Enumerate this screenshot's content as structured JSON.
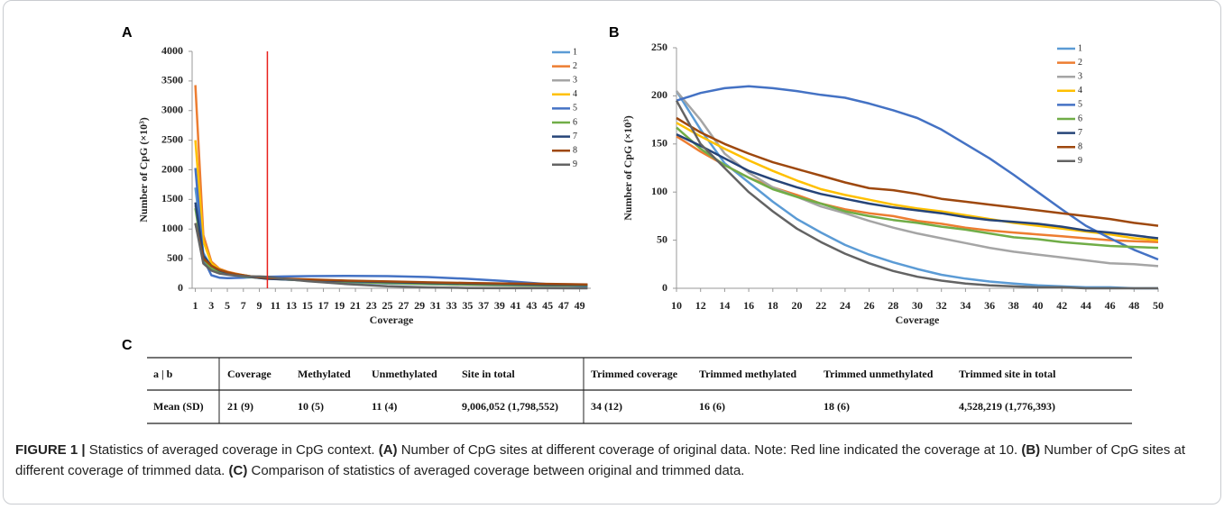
{
  "chart_data": [
    {
      "type": "line",
      "panel_label": "A",
      "x_label": "Coverage",
      "y_label": "Number of CpG (×10³)",
      "x": [
        1,
        2,
        3,
        4,
        5,
        6,
        7,
        8,
        9,
        10,
        12,
        15,
        20,
        25,
        30,
        35,
        40,
        45,
        50
      ],
      "xlim": [
        0.6,
        50.4
      ],
      "xticks": [
        1,
        3,
        5,
        7,
        9,
        11,
        13,
        15,
        17,
        19,
        21,
        23,
        25,
        27,
        29,
        31,
        33,
        35,
        37,
        39,
        41,
        43,
        45,
        47,
        49
      ],
      "ylim": [
        0,
        4000
      ],
      "yticks": [
        0,
        500,
        1000,
        1500,
        2000,
        2500,
        3000,
        3500,
        4000
      ],
      "vline": {
        "x": 10,
        "color": "#e8201c"
      },
      "series": [
        {
          "name": "1",
          "color": "#5b9bd5",
          "values": [
            1700,
            600,
            350,
            280,
            240,
            220,
            200,
            190,
            180,
            170,
            150,
            130,
            100,
            80,
            70,
            60,
            55,
            50,
            45
          ]
        },
        {
          "name": "2",
          "color": "#ed7d31",
          "values": [
            3430,
            900,
            450,
            330,
            280,
            250,
            220,
            200,
            190,
            170,
            155,
            140,
            120,
            105,
            90,
            80,
            70,
            60,
            55
          ]
        },
        {
          "name": "3",
          "color": "#a5a5a5",
          "values": [
            1400,
            550,
            350,
            290,
            250,
            230,
            210,
            200,
            190,
            180,
            160,
            140,
            110,
            85,
            70,
            55,
            45,
            35,
            25
          ]
        },
        {
          "name": "4",
          "color": "#ffc000",
          "values": [
            2500,
            800,
            420,
            320,
            270,
            240,
            220,
            200,
            185,
            170,
            160,
            145,
            125,
            110,
            95,
            85,
            75,
            65,
            55
          ]
        },
        {
          "name": "5",
          "color": "#4472c4",
          "values": [
            2030,
            500,
            220,
            180,
            170,
            175,
            180,
            185,
            190,
            195,
            200,
            205,
            210,
            205,
            190,
            160,
            120,
            70,
            30
          ]
        },
        {
          "name": "6",
          "color": "#70ad47",
          "values": [
            1350,
            500,
            330,
            270,
            240,
            220,
            200,
            185,
            175,
            165,
            150,
            130,
            110,
            90,
            75,
            65,
            55,
            50,
            45
          ]
        },
        {
          "name": "7",
          "color": "#264478",
          "values": [
            1450,
            550,
            380,
            300,
            260,
            230,
            210,
            190,
            175,
            160,
            150,
            135,
            120,
            105,
            90,
            80,
            70,
            60,
            55
          ]
        },
        {
          "name": "8",
          "color": "#9e480e",
          "values": [
            1100,
            500,
            380,
            310,
            270,
            240,
            220,
            200,
            185,
            175,
            165,
            150,
            130,
            115,
            100,
            90,
            80,
            75,
            65
          ]
        },
        {
          "name": "9",
          "color": "#636363",
          "values": [
            1100,
            420,
            300,
            250,
            230,
            215,
            205,
            200,
            200,
            195,
            160,
            120,
            70,
            35,
            15,
            5,
            2,
            1,
            0
          ]
        }
      ]
    },
    {
      "type": "line",
      "panel_label": "B",
      "x_label": "Coverage",
      "y_label": "Number of CpG (×10³)",
      "x": [
        10,
        12,
        14,
        16,
        18,
        20,
        22,
        24,
        26,
        28,
        30,
        32,
        34,
        36,
        38,
        40,
        42,
        44,
        46,
        48,
        50
      ],
      "xlim": [
        10,
        50
      ],
      "xticks": [
        10,
        12,
        14,
        16,
        18,
        20,
        22,
        24,
        26,
        28,
        30,
        32,
        34,
        36,
        38,
        40,
        42,
        44,
        46,
        48,
        50
      ],
      "ylim": [
        0,
        250
      ],
      "yticks": [
        0,
        50,
        100,
        150,
        200,
        250
      ],
      "series": [
        {
          "name": "1",
          "color": "#5b9bd5",
          "values": [
            205,
            165,
            130,
            110,
            90,
            72,
            58,
            45,
            35,
            27,
            20,
            14,
            10,
            7,
            5,
            3,
            2,
            1,
            1,
            0,
            0
          ]
        },
        {
          "name": "2",
          "color": "#ed7d31",
          "values": [
            158,
            142,
            128,
            115,
            105,
            97,
            88,
            82,
            78,
            75,
            70,
            67,
            63,
            60,
            58,
            56,
            54,
            52,
            50,
            49,
            48
          ]
        },
        {
          "name": "3",
          "color": "#a5a5a5",
          "values": [
            205,
            175,
            140,
            120,
            105,
            95,
            85,
            78,
            70,
            63,
            57,
            52,
            47,
            42,
            38,
            35,
            32,
            29,
            26,
            25,
            23
          ]
        },
        {
          "name": "4",
          "color": "#ffc000",
          "values": [
            172,
            158,
            145,
            133,
            122,
            112,
            103,
            97,
            92,
            87,
            83,
            80,
            76,
            72,
            68,
            65,
            62,
            59,
            56,
            52,
            50
          ]
        },
        {
          "name": "5",
          "color": "#4472c4",
          "values": [
            195,
            203,
            208,
            210,
            208,
            205,
            201,
            198,
            192,
            185,
            177,
            165,
            150,
            135,
            118,
            100,
            82,
            65,
            52,
            40,
            30
          ]
        },
        {
          "name": "6",
          "color": "#70ad47",
          "values": [
            167,
            145,
            128,
            115,
            103,
            95,
            88,
            80,
            75,
            71,
            68,
            64,
            61,
            57,
            53,
            51,
            48,
            46,
            44,
            43,
            42
          ]
        },
        {
          "name": "7",
          "color": "#264478",
          "values": [
            160,
            148,
            135,
            122,
            113,
            105,
            98,
            93,
            88,
            84,
            81,
            78,
            74,
            71,
            69,
            67,
            64,
            60,
            58,
            55,
            52
          ]
        },
        {
          "name": "8",
          "color": "#9e480e",
          "values": [
            177,
            162,
            150,
            140,
            131,
            124,
            117,
            110,
            104,
            102,
            98,
            93,
            90,
            87,
            84,
            81,
            78,
            75,
            72,
            68,
            65
          ]
        },
        {
          "name": "9",
          "color": "#636363",
          "values": [
            195,
            150,
            125,
            100,
            80,
            62,
            48,
            36,
            26,
            18,
            12,
            8,
            5,
            3,
            2,
            1,
            1,
            0,
            0,
            0,
            0
          ]
        }
      ]
    }
  ],
  "table": {
    "panel_label": "C",
    "header": [
      "a | b",
      "Coverage",
      "Methylated",
      "Unmethylated",
      "Site in total",
      "Trimmed coverage",
      "Trimmed methylated",
      "Trimmed unmethylated",
      "Trimmed site in total"
    ],
    "rows": [
      [
        "Mean (SD)",
        "21 (9)",
        "10 (5)",
        "11 (4)",
        "9,006,052 (1,798,552)",
        "34 (12)",
        "16 (6)",
        "18 (6)",
        "4,528,219 (1,776,393)"
      ]
    ]
  },
  "caption": {
    "parts": [
      {
        "text": "FIGURE 1 |",
        "bold": true
      },
      {
        "text": " Statistics of averaged coverage in CpG context. ",
        "bold": false
      },
      {
        "text": "(A)",
        "bold": true
      },
      {
        "text": " Number of CpG sites at different coverage of original data. Note: Red line indicated the coverage at 10. ",
        "bold": false
      },
      {
        "text": "(B)",
        "bold": true
      },
      {
        "text": " Number of CpG sites at different coverage of trimmed data. ",
        "bold": false
      },
      {
        "text": "(C)",
        "bold": true
      },
      {
        "text": " Comparison of statistics of averaged coverage between original and trimmed data.",
        "bold": false
      }
    ]
  }
}
